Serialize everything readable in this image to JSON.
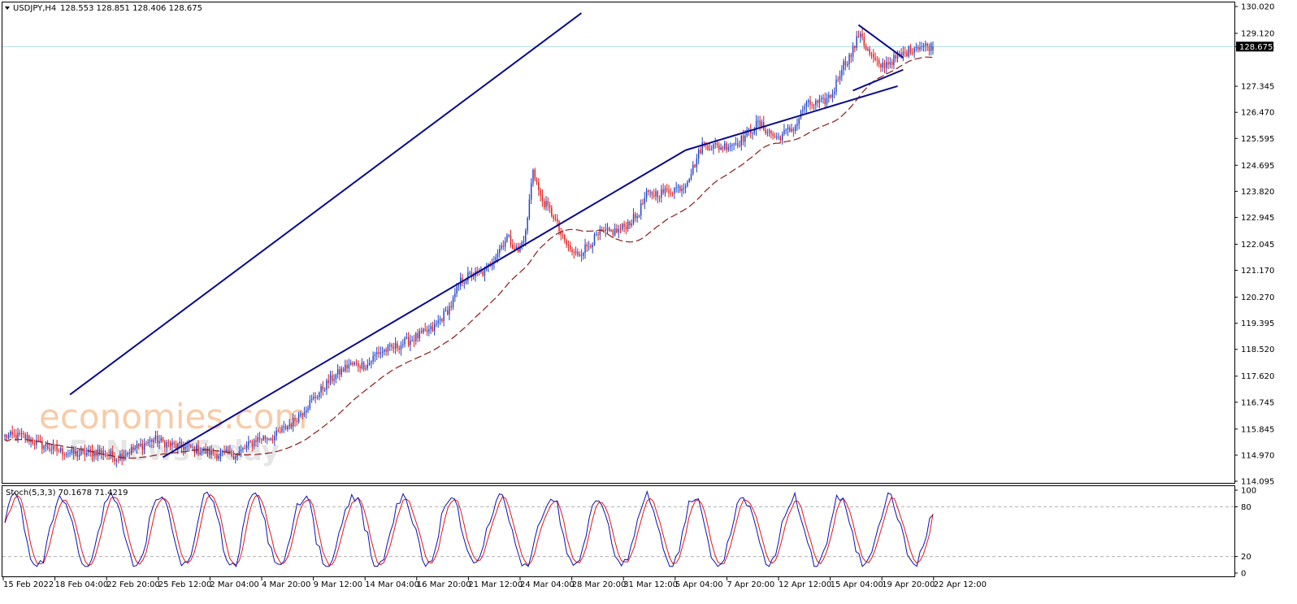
{
  "header": {
    "symbol_label": "USDJPY,H4",
    "ohlc_label": "128.553 128.851 128.406 128.675"
  },
  "current_price_label": "128.675",
  "watermark": {
    "line1": "economies.com",
    "line2": "FxNewsToday"
  },
  "colors": {
    "bull": "#1f3fc8",
    "bear": "#e01818",
    "trendline": "#0a0a8c",
    "ma": "#8b1a1a",
    "stoch_main": "#1010b0",
    "stoch_signal": "#e01818",
    "price_line": "#b0dce8"
  },
  "chart_data": [
    {
      "type": "candlestick",
      "title": "USDJPY,H4",
      "price_axis_ticks": [
        "130.020",
        "129.120",
        "128.675",
        "127.345",
        "126.470",
        "125.595",
        "124.695",
        "123.820",
        "122.945",
        "122.045",
        "121.170",
        "120.270",
        "119.395",
        "118.520",
        "117.620",
        "116.745",
        "115.845",
        "114.970",
        "114.095"
      ],
      "ylim": [
        114.095,
        130.02
      ],
      "time_axis_labels": [
        "15 Feb 2022",
        "18 Feb 04:00",
        "22 Feb 20:00",
        "25 Feb 12:00",
        "2 Mar 04:00",
        "4 Mar 20:00",
        "9 Mar 12:00",
        "14 Mar 04:00",
        "16 Mar 20:00",
        "21 Mar 12:00",
        "24 Mar 04:00",
        "28 Mar 20:00",
        "31 Mar 12:00",
        "5 Apr 04:00",
        "7 Apr 20:00",
        "12 Apr 12:00",
        "15 Apr 04:00",
        "19 Apr 20:00",
        "22 Apr 12:00"
      ],
      "last": {
        "open": 128.553,
        "high": 128.851,
        "low": 128.406,
        "close": 128.675
      },
      "path_anchors": [
        [
          0,
          115.6
        ],
        [
          10,
          115.6
        ],
        [
          20,
          115.3
        ],
        [
          30,
          115.1
        ],
        [
          40,
          115.0
        ],
        [
          50,
          115.1
        ],
        [
          60,
          114.9
        ],
        [
          70,
          115.2
        ],
        [
          80,
          115.5
        ],
        [
          90,
          115.3
        ],
        [
          100,
          115.2
        ],
        [
          115,
          115.0
        ],
        [
          125,
          115.0
        ],
        [
          135,
          115.5
        ],
        [
          145,
          115.6
        ],
        [
          155,
          116.1
        ],
        [
          165,
          116.8
        ],
        [
          175,
          117.5
        ],
        [
          185,
          118.0
        ],
        [
          195,
          118.0
        ],
        [
          200,
          118.4
        ],
        [
          210,
          118.6
        ],
        [
          220,
          118.9
        ],
        [
          230,
          119.2
        ],
        [
          240,
          120.0
        ],
        [
          245,
          120.8
        ],
        [
          250,
          121.0
        ],
        [
          258,
          121.1
        ],
        [
          265,
          121.8
        ],
        [
          270,
          122.3
        ],
        [
          276,
          121.8
        ],
        [
          280,
          122.4
        ],
        [
          284,
          124.6
        ],
        [
          288,
          123.6
        ],
        [
          295,
          123.0
        ],
        [
          300,
          122.2
        ],
        [
          306,
          121.7
        ],
        [
          310,
          121.8
        ],
        [
          320,
          122.4
        ],
        [
          330,
          122.5
        ],
        [
          340,
          123.0
        ],
        [
          345,
          123.7
        ],
        [
          355,
          123.8
        ],
        [
          365,
          124.0
        ],
        [
          370,
          124.6
        ],
        [
          375,
          125.4
        ],
        [
          385,
          125.3
        ],
        [
          395,
          125.5
        ],
        [
          405,
          126.1
        ],
        [
          415,
          125.6
        ],
        [
          425,
          126.0
        ],
        [
          430,
          126.7
        ],
        [
          440,
          126.8
        ],
        [
          445,
          127.1
        ],
        [
          450,
          128.0
        ],
        [
          455,
          128.4
        ],
        [
          460,
          129.2
        ],
        [
          463,
          128.6
        ],
        [
          470,
          128.0
        ],
        [
          480,
          128.3
        ],
        [
          490,
          128.7
        ],
        [
          499,
          128.675
        ]
      ],
      "stochastic": {
        "label": "Stoch(5,3,3) 70.1678 71.4219",
        "period": "5,3,3",
        "main_last": 70.1678,
        "signal_last": 71.4219,
        "levels": [
          80,
          20
        ],
        "axis_ticks": [
          "100",
          "80",
          "20",
          "0"
        ],
        "ylim": [
          0,
          100
        ]
      },
      "trendlines": [
        {
          "name": "channel-upper",
          "from": [
            35,
            117.0
          ],
          "to": [
            310,
            129.8
          ]
        },
        {
          "name": "channel-lower",
          "from": [
            85,
            114.9
          ],
          "to": [
            366,
            125.2
          ]
        },
        {
          "name": "channel-lower-ext",
          "from": [
            366,
            125.2
          ],
          "to": [
            480,
            127.35
          ]
        },
        {
          "name": "pennant-upper",
          "from": [
            459,
            129.4
          ],
          "to": [
            483,
            128.3
          ]
        },
        {
          "name": "pennant-lower",
          "from": [
            456,
            127.2
          ],
          "to": [
            483,
            127.9
          ]
        }
      ]
    }
  ]
}
